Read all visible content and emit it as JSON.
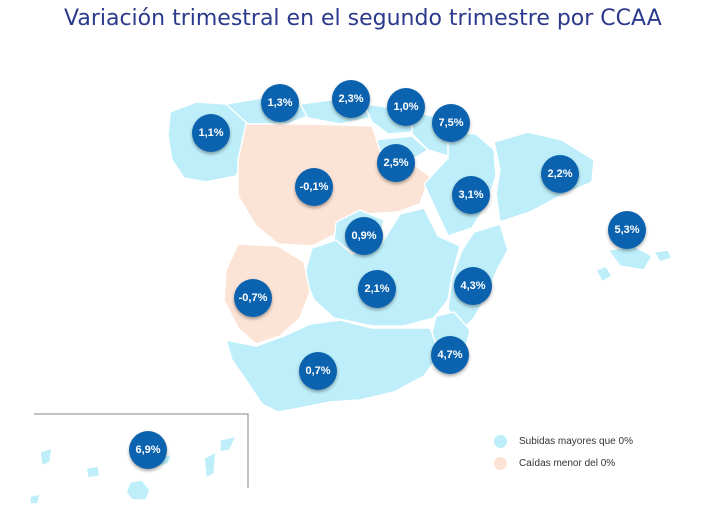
{
  "title": "Variación trimestral en el segundo trimestre por CCAA",
  "colors": {
    "rise": "#bdeefa",
    "fall": "#fbe3d6",
    "bubble": "#0b63b0",
    "title": "#2b3a8c"
  },
  "regions": [
    {
      "value": "1,1%"
    },
    {
      "value": "1,3%"
    },
    {
      "value": "2,3%"
    },
    {
      "value": "1,0%"
    },
    {
      "value": "7,5%"
    },
    {
      "value": "2,5%"
    },
    {
      "value": "-0,1%"
    },
    {
      "value": "2,2%"
    },
    {
      "value": "3,1%"
    },
    {
      "value": "5,3%"
    },
    {
      "value": "0,9%"
    },
    {
      "value": "-0,7%"
    },
    {
      "value": "2,1%"
    },
    {
      "value": "4,3%"
    },
    {
      "value": "4,7%"
    },
    {
      "value": "0,7%"
    },
    {
      "value": "6,9%"
    }
  ],
  "legend": {
    "rise_label": "Subidas mayores que 0%",
    "fall_label": "Caídas menor del 0%"
  }
}
